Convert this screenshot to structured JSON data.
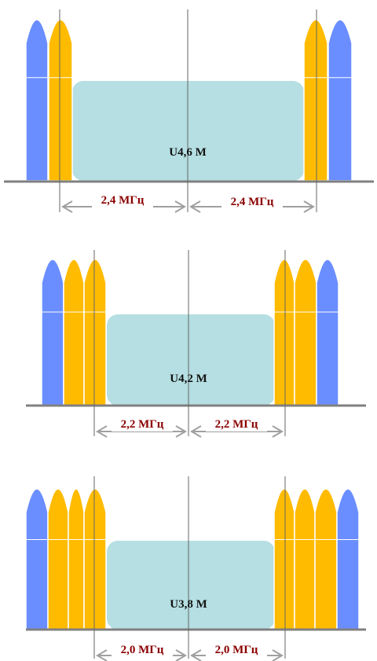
{
  "colors": {
    "blue_carrier": "#6a8eff",
    "yellow_carrier": "#ffbb00",
    "band": "#b5dfe2",
    "axis": "#808080",
    "arrow": "#a0a0a0",
    "width_label": "#8b0000",
    "guide_line": "#666666"
  },
  "panels": [
    {
      "band_label": "U4,6 M",
      "left_width_label": "2,4 МГц",
      "right_width_label": "2,4 МГц",
      "side_carriers": {
        "left": [
          "blue",
          "yellow"
        ],
        "right": [
          "yellow",
          "blue"
        ]
      }
    },
    {
      "band_label": "U4,2 M",
      "left_width_label": "2,2 МГц",
      "right_width_label": "2,2 МГц",
      "side_carriers": {
        "left": [
          "blue",
          "yellow",
          "yellow"
        ],
        "right": [
          "yellow",
          "yellow",
          "blue"
        ]
      }
    },
    {
      "band_label": "U3,8 M",
      "left_width_label": "2,0 МГц",
      "right_width_label": "2,0 МГц",
      "side_carriers": {
        "left": [
          "blue",
          "yellow",
          "yellow",
          "yellow"
        ],
        "right": [
          "yellow",
          "yellow",
          "yellow",
          "blue"
        ]
      }
    }
  ]
}
